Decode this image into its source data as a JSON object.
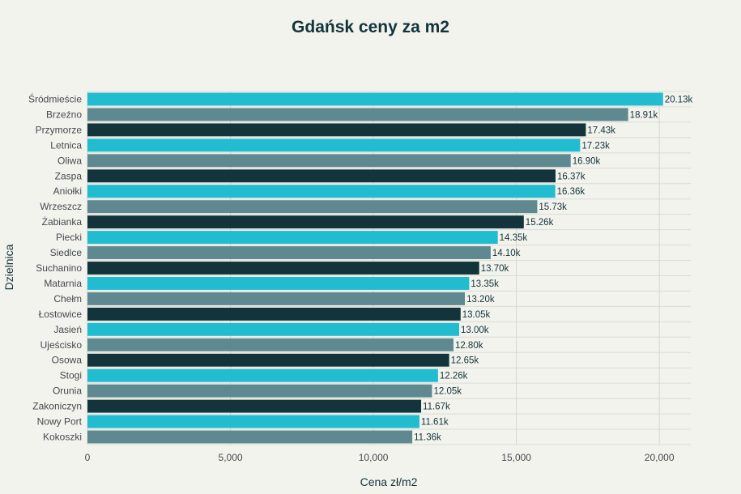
{
  "chart_data": {
    "type": "bar",
    "orientation": "horizontal",
    "title": "Gdańsk ceny za m2",
    "xlabel": "Cena zł/m2",
    "ylabel": "Dzielnica",
    "xlim": [
      0,
      21100
    ],
    "x_ticks": [
      0,
      5000,
      10000,
      15000,
      20000
    ],
    "x_tick_labels": [
      "0",
      "5,000",
      "10,000",
      "15,000",
      "20,000"
    ],
    "grid": true,
    "categories": [
      "Śródmieście",
      "Brzeźno",
      "Przymorze",
      "Letnica",
      "Oliwa",
      "Zaspa",
      "Aniołki",
      "Wrzeszcz",
      "Żabianka",
      "Piecki",
      "Siedlce",
      "Suchanino",
      "Matarnia",
      "Chełm",
      "Łostowice",
      "Jasień",
      "Ujeścisko",
      "Osowa",
      "Stogi",
      "Orunia",
      "Zakoniczyn",
      "Nowy Port",
      "Kokoszki"
    ],
    "values": [
      20130,
      18910,
      17430,
      17230,
      16900,
      16370,
      16360,
      15730,
      15260,
      14350,
      14100,
      13700,
      13350,
      13200,
      13050,
      13000,
      12800,
      12650,
      12260,
      12050,
      11670,
      11610,
      11360
    ],
    "data_labels": [
      "20.13k",
      "18.91k",
      "17.43k",
      "17.23k",
      "16.90k",
      "16.37k",
      "16.36k",
      "15.73k",
      "15.26k",
      "14.35k",
      "14.10k",
      "13.70k",
      "13.35k",
      "13.20k",
      "13.05k",
      "13.00k",
      "12.80k",
      "12.65k",
      "12.26k",
      "12.05k",
      "11.67k",
      "11.61k",
      "11.36k"
    ],
    "colors": [
      "#21bccf",
      "#5e8990",
      "#13343b"
    ]
  }
}
